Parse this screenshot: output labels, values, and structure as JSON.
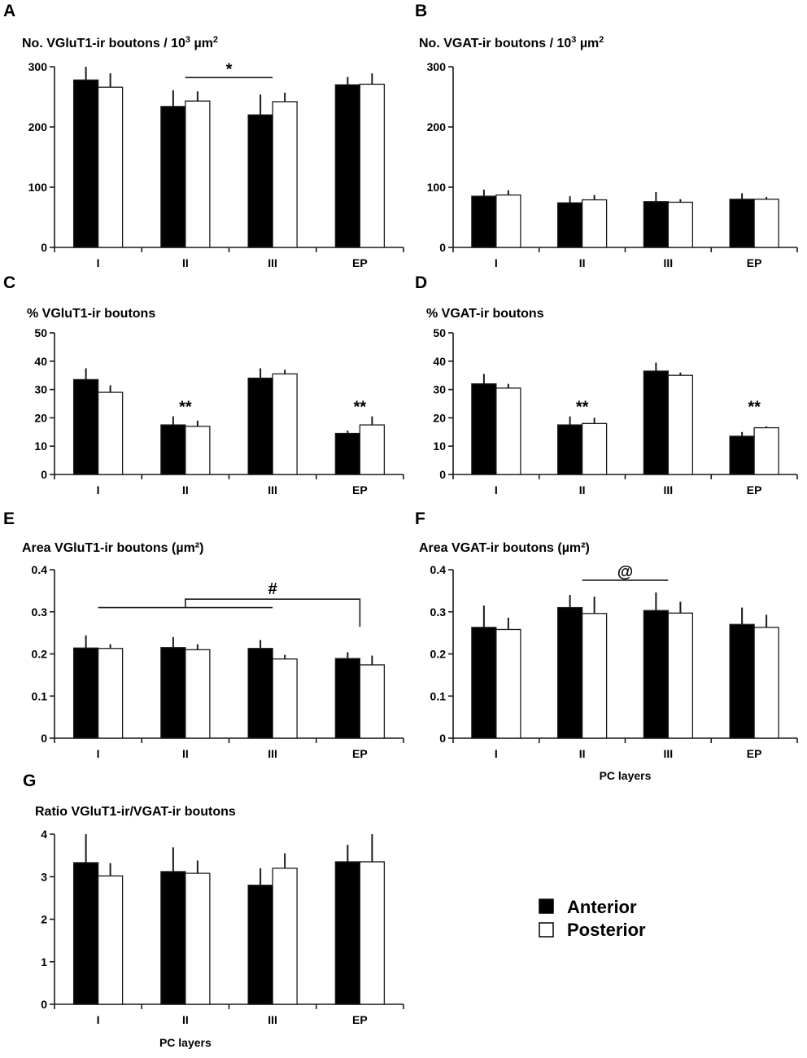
{
  "figure": {
    "series_names": [
      "Anterior",
      "Posterior"
    ],
    "colors": {
      "anterior": "#000000",
      "posterior": "#ffffff",
      "stroke": "#1a1a1a"
    },
    "legend": {
      "anterior_label": "Anterior",
      "posterior_label": "Posterior",
      "placement": "bottom-right"
    }
  },
  "chart_data": [
    {
      "panel": "A",
      "type": "bar",
      "title_main": "No. VGluT1-ir boutons / 10",
      "title_sup": "3",
      "title_unit": " µm",
      "title_sup2": "2",
      "categories": [
        "I",
        "II",
        "III",
        "EP"
      ],
      "ylim": [
        0,
        300
      ],
      "yticks": [
        "0",
        "100",
        "200",
        "300"
      ],
      "xlabel": "",
      "series": [
        {
          "name": "Anterior",
          "values": [
            278,
            234,
            220,
            270
          ],
          "errors": [
            22,
            27,
            34,
            13
          ]
        },
        {
          "name": "Posterior",
          "values": [
            266,
            243,
            242,
            271
          ],
          "errors": [
            23,
            16,
            15,
            18
          ]
        }
      ],
      "annotations": [
        {
          "type": "bracket",
          "text": "*",
          "between": [
            "II",
            "III"
          ],
          "level": 282
        }
      ]
    },
    {
      "panel": "B",
      "type": "bar",
      "title_main": "No. VGAT-ir boutons / 10",
      "title_sup": "3",
      "title_unit": " µm",
      "title_sup2": "2",
      "categories": [
        "I",
        "II",
        "III",
        "EP"
      ],
      "ylim": [
        0,
        300
      ],
      "yticks": [
        "0",
        "100",
        "200",
        "300"
      ],
      "xlabel": "",
      "series": [
        {
          "name": "Anterior",
          "values": [
            85,
            74,
            76,
            80
          ],
          "errors": [
            11,
            11,
            16,
            10
          ]
        },
        {
          "name": "Posterior",
          "values": [
            87,
            79,
            75,
            80
          ],
          "errors": [
            8,
            8,
            5,
            4
          ]
        }
      ],
      "annotations": []
    },
    {
      "panel": "C",
      "type": "bar",
      "title_main": "% VGluT1-ir boutons",
      "title_sup": "",
      "title_unit": "",
      "title_sup2": "",
      "categories": [
        "I",
        "II",
        "III",
        "EP"
      ],
      "ylim": [
        0,
        50
      ],
      "yticks": [
        "0",
        "10",
        "20",
        "30",
        "40",
        "50"
      ],
      "xlabel": "",
      "series": [
        {
          "name": "Anterior",
          "values": [
            33.5,
            17.5,
            34,
            14.5
          ],
          "errors": [
            4,
            3,
            3.5,
            1
          ]
        },
        {
          "name": "Posterior",
          "values": [
            29,
            17,
            35.5,
            17.5
          ],
          "errors": [
            2.5,
            2,
            1.5,
            3
          ]
        }
      ],
      "annotations": [
        {
          "type": "label",
          "text": "**",
          "at": "II",
          "level": 22
        },
        {
          "type": "label",
          "text": "**",
          "at": "EP",
          "level": 22
        }
      ]
    },
    {
      "panel": "D",
      "type": "bar",
      "title_main": "% VGAT-ir boutons",
      "title_sup": "",
      "title_unit": "",
      "title_sup2": "",
      "categories": [
        "I",
        "II",
        "III",
        "EP"
      ],
      "ylim": [
        0,
        50
      ],
      "yticks": [
        "0",
        "10",
        "20",
        "30",
        "40",
        "50"
      ],
      "xlabel": "",
      "series": [
        {
          "name": "Anterior",
          "values": [
            32,
            17.5,
            36.5,
            13.5
          ],
          "errors": [
            3.5,
            3,
            3,
            1.5
          ]
        },
        {
          "name": "Posterior",
          "values": [
            30.5,
            18,
            35,
            16.5
          ],
          "errors": [
            1.5,
            2,
            1,
            0.5
          ]
        }
      ],
      "annotations": [
        {
          "type": "label",
          "text": "**",
          "at": "II",
          "level": 22
        },
        {
          "type": "label",
          "text": "**",
          "at": "EP",
          "level": 22
        }
      ]
    },
    {
      "panel": "E",
      "type": "bar",
      "title_main": "Area VGluT1-ir boutons (µm²)",
      "title_sup": "",
      "title_unit": "",
      "title_sup2": "",
      "categories": [
        "I",
        "II",
        "III",
        "EP"
      ],
      "ylim": [
        0,
        0.4
      ],
      "yticks": [
        "0",
        "0.1",
        "0.2",
        "0.3",
        "0.4"
      ],
      "xlabel": "",
      "series": [
        {
          "name": "Anterior",
          "values": [
            0.214,
            0.215,
            0.213,
            0.189
          ],
          "errors": [
            0.03,
            0.025,
            0.02,
            0.015
          ]
        },
        {
          "name": "Posterior",
          "values": [
            0.213,
            0.21,
            0.188,
            0.174
          ],
          "errors": [
            0.01,
            0.013,
            0.01,
            0.022
          ]
        }
      ],
      "annotations": [
        {
          "type": "hash-bracket",
          "text": "#",
          "from": [
            "I",
            "III"
          ],
          "to": "EP",
          "low": 0.31,
          "high": 0.33
        }
      ]
    },
    {
      "panel": "F",
      "type": "bar",
      "title_main": "Area VGAT-ir boutons (µm²)",
      "title_sup": "",
      "title_unit": "",
      "title_sup2": "",
      "categories": [
        "I",
        "II",
        "III",
        "EP"
      ],
      "ylim": [
        0,
        0.4
      ],
      "yticks": [
        "0",
        "0.1",
        "0.2",
        "0.3",
        "0.4"
      ],
      "xlabel": "PC layers",
      "series": [
        {
          "name": "Anterior",
          "values": [
            0.263,
            0.31,
            0.303,
            0.27
          ],
          "errors": [
            0.052,
            0.03,
            0.043,
            0.04
          ]
        },
        {
          "name": "Posterior",
          "values": [
            0.258,
            0.296,
            0.297,
            0.263
          ],
          "errors": [
            0.028,
            0.04,
            0.027,
            0.03
          ]
        }
      ],
      "annotations": [
        {
          "type": "bracket",
          "text": "@",
          "between": [
            "II",
            "III"
          ],
          "level": 0.375
        }
      ]
    },
    {
      "panel": "G",
      "type": "bar",
      "title_main": "Ratio VGluT1-ir/VGAT-ir boutons",
      "title_sup": "",
      "title_unit": "",
      "title_sup2": "",
      "categories": [
        "I",
        "II",
        "III",
        "EP"
      ],
      "ylim": [
        0,
        4
      ],
      "yticks": [
        "0",
        "1",
        "2",
        "3",
        "4"
      ],
      "xlabel": "PC layers",
      "series": [
        {
          "name": "Anterior",
          "values": [
            3.33,
            3.12,
            2.8,
            3.35
          ],
          "errors": [
            0.67,
            0.57,
            0.4,
            0.4
          ]
        },
        {
          "name": "Posterior",
          "values": [
            3.02,
            3.08,
            3.2,
            3.35
          ],
          "errors": [
            0.3,
            0.3,
            0.35,
            0.65
          ]
        }
      ],
      "annotations": []
    }
  ]
}
